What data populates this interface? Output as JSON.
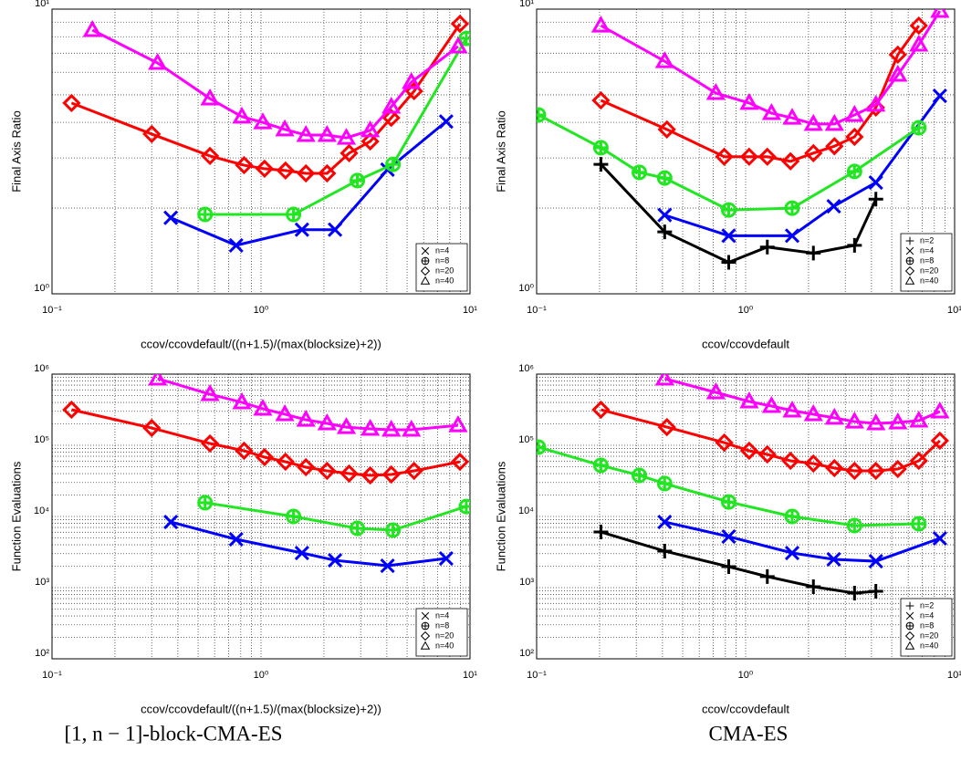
{
  "chart_data": [
    {
      "type": "line",
      "xlabel": "ccov/ccovdefault/((n+1.5)/(max(blocksize)+2))",
      "ylabel": "Final Axis Ratio",
      "log_x": true,
      "log_y": true,
      "grid": true,
      "minor_grid": true,
      "legend": "lower right",
      "xlim": [
        0.1,
        10
      ],
      "ylim": [
        1,
        10
      ],
      "xticks": [
        {
          "value": 0.1,
          "label": "10⁻¹"
        },
        {
          "value": 1,
          "label": "10⁰"
        },
        {
          "value": 10,
          "label": "10¹"
        }
      ],
      "yticks": [
        {
          "value": 1,
          "label": "10⁰"
        },
        {
          "value": 10,
          "label": "10¹"
        }
      ],
      "series": [
        {
          "name": "n=4",
          "color": "#0000ff",
          "marker": "x",
          "x": [
            0.37,
            0.76,
            1.57,
            2.26,
            4.03,
            7.69
          ],
          "values": [
            1.85,
            1.48,
            1.68,
            1.68,
            2.73,
            4.03
          ]
        },
        {
          "name": "n=8",
          "color": "#22e622",
          "marker": "circle-plus",
          "x": [
            0.54,
            1.43,
            2.89,
            4.28,
            9.6
          ],
          "values": [
            1.9,
            1.9,
            2.5,
            2.85,
            7.89
          ]
        },
        {
          "name": "n=20",
          "color": "#ff0000",
          "marker": "diamond",
          "x": [
            0.124,
            0.3,
            0.57,
            0.83,
            1.04,
            1.31,
            1.64,
            2.07,
            2.64,
            3.33,
            4.2,
            5.4,
            8.95
          ],
          "values": [
            4.68,
            3.64,
            3.05,
            2.83,
            2.75,
            2.71,
            2.65,
            2.65,
            3.12,
            3.43,
            4.15,
            5.15,
            8.88
          ]
        },
        {
          "name": "n=40",
          "color": "#ff00ff",
          "marker": "triangle",
          "x": [
            0.156,
            0.32,
            0.57,
            0.81,
            1.02,
            1.3,
            1.64,
            2.07,
            2.56,
            3.33,
            4.2,
            5.24,
            8.77
          ],
          "values": [
            8.44,
            6.47,
            4.85,
            4.19,
            4.0,
            3.78,
            3.61,
            3.61,
            3.53,
            3.75,
            4.54,
            5.54,
            7.39
          ]
        }
      ]
    },
    {
      "type": "line",
      "xlabel": "ccov/ccovdefault",
      "ylabel": "Final Axis Ratio",
      "log_x": true,
      "log_y": true,
      "grid": true,
      "minor_grid": true,
      "legend": "lower right",
      "xlim": [
        0.1,
        10
      ],
      "ylim": [
        1,
        10
      ],
      "xticks": [
        {
          "value": 0.1,
          "label": "10⁻¹"
        },
        {
          "value": 1,
          "label": "10⁰"
        },
        {
          "value": 10,
          "label": "10¹"
        }
      ],
      "yticks": [
        {
          "value": 1,
          "label": "10⁰"
        },
        {
          "value": 10,
          "label": "10¹"
        }
      ],
      "series": [
        {
          "name": "n=2",
          "color": "#000000",
          "marker": "plus",
          "x": [
            0.203,
            0.41,
            0.83,
            1.27,
            2.11,
            3.32,
            4.2
          ],
          "values": [
            2.85,
            1.65,
            1.29,
            1.46,
            1.39,
            1.48,
            2.15
          ]
        },
        {
          "name": "n=4",
          "color": "#0000ff",
          "marker": "x",
          "x": [
            0.41,
            0.83,
            1.67,
            2.64,
            4.2,
            8.5
          ],
          "values": [
            1.89,
            1.6,
            1.6,
            2.03,
            2.46,
            4.96
          ]
        },
        {
          "name": "n=8",
          "color": "#22e622",
          "marker": "circle-plus",
          "x": [
            0.102,
            0.203,
            0.31,
            0.41,
            0.83,
            1.67,
            3.32,
            6.74
          ],
          "values": [
            4.25,
            3.26,
            2.67,
            2.55,
            1.97,
            2.0,
            2.69,
            3.83
          ]
        },
        {
          "name": "n=20",
          "color": "#ff0000",
          "marker": "diamond",
          "x": [
            0.203,
            0.42,
            0.79,
            1.04,
            1.27,
            1.64,
            2.11,
            2.66,
            3.32,
            4.2,
            5.35,
            6.74
          ],
          "values": [
            4.78,
            3.78,
            3.03,
            3.03,
            3.03,
            2.92,
            3.12,
            3.3,
            3.56,
            4.51,
            6.92,
            8.75
          ]
        },
        {
          "name": "n=40",
          "color": "#ff00ff",
          "marker": "triangle",
          "x": [
            0.203,
            0.41,
            0.72,
            1.04,
            1.33,
            1.67,
            2.11,
            2.66,
            3.32,
            4.2,
            5.35,
            6.74,
            8.5
          ],
          "values": [
            8.75,
            6.56,
            5.07,
            4.68,
            4.31,
            4.15,
            3.95,
            3.95,
            4.25,
            4.61,
            5.88,
            7.5,
            9.85
          ]
        }
      ]
    },
    {
      "type": "line",
      "xlabel": "ccov/ccovdefault/((n+1.5)/(max(blocksize)+2))",
      "ylabel": "Function Evaluations",
      "log_x": true,
      "log_y": true,
      "grid": true,
      "minor_grid": true,
      "legend": "lower right",
      "xlim": [
        0.1,
        10
      ],
      "ylim": [
        100,
        1000000
      ],
      "xticks": [
        {
          "value": 0.1,
          "label": "10⁻¹"
        },
        {
          "value": 1,
          "label": "10⁰"
        },
        {
          "value": 10,
          "label": "10¹"
        }
      ],
      "yticks": [
        {
          "value": 100,
          "label": "10²"
        },
        {
          "value": 1000,
          "label": "10³"
        },
        {
          "value": 10000,
          "label": "10⁴"
        },
        {
          "value": 100000,
          "label": "10⁵"
        },
        {
          "value": 1000000,
          "label": "10⁶"
        }
      ],
      "series": [
        {
          "name": "n=4",
          "color": "#0000ff",
          "marker": "x",
          "x": [
            0.37,
            0.76,
            1.57,
            2.26,
            4.03,
            7.69
          ],
          "values": [
            8370,
            4780,
            3070,
            2420,
            2030,
            2570
          ]
        },
        {
          "name": "n=8",
          "color": "#22e622",
          "marker": "circle-plus",
          "x": [
            0.54,
            1.43,
            2.89,
            4.28,
            9.6
          ],
          "values": [
            15600,
            10000,
            6810,
            6420,
            13800
          ]
        },
        {
          "name": "n=20",
          "color": "#ff0000",
          "marker": "diamond",
          "x": [
            0.124,
            0.3,
            0.57,
            0.83,
            1.04,
            1.31,
            1.64,
            2.07,
            2.64,
            3.33,
            4.2,
            5.4,
            8.95
          ],
          "values": [
            316000,
            175000,
            106000,
            83800,
            68100,
            58700,
            49200,
            43700,
            40100,
            37800,
            38900,
            43700,
            58700
          ]
        },
        {
          "name": "n=40",
          "color": "#ff00ff",
          "marker": "triangle",
          "x": [
            0.32,
            0.57,
            0.81,
            1.02,
            1.3,
            1.64,
            2.07,
            2.56,
            3.33,
            4.2,
            5.24,
            8.77
          ],
          "values": [
            863000,
            522000,
            401000,
            326000,
            273000,
            228000,
            203000,
            180000,
            170000,
            165000,
            165000,
            191000
          ]
        }
      ]
    },
    {
      "type": "line",
      "xlabel": "ccov/ccovdefault",
      "ylabel": "Function Evaluations",
      "log_x": true,
      "log_y": true,
      "grid": true,
      "minor_grid": true,
      "legend": "lower right",
      "xlim": [
        0.1,
        10
      ],
      "ylim": [
        100,
        1000000
      ],
      "xticks": [
        {
          "value": 0.1,
          "label": "10⁻¹"
        },
        {
          "value": 1,
          "label": "10⁰"
        },
        {
          "value": 10,
          "label": "10¹"
        }
      ],
      "yticks": [
        {
          "value": 100,
          "label": "10²"
        },
        {
          "value": 1000,
          "label": "10³"
        },
        {
          "value": 10000,
          "label": "10⁴"
        },
        {
          "value": 100000,
          "label": "10⁵"
        },
        {
          "value": 1000000,
          "label": "10⁶"
        }
      ],
      "series": [
        {
          "name": "n=2",
          "color": "#000000",
          "marker": "plus",
          "x": [
            0.203,
            0.41,
            0.83,
            1.27,
            2.11,
            3.32,
            4.2
          ],
          "values": [
            6050,
            3260,
            1970,
            1430,
            1030,
            838,
            889
          ]
        },
        {
          "name": "n=4",
          "color": "#0000ff",
          "marker": "x",
          "x": [
            0.41,
            0.83,
            1.67,
            2.64,
            4.2,
            8.5
          ],
          "values": [
            8370,
            5220,
            3070,
            2500,
            2350,
            4920
          ]
        },
        {
          "name": "n=8",
          "color": "#22e622",
          "marker": "circle-plus",
          "x": [
            0.102,
            0.203,
            0.31,
            0.41,
            0.83,
            1.67,
            3.32,
            6.74
          ],
          "values": [
            94200,
            52200,
            37800,
            29000,
            16000,
            10000,
            7450,
            7890
          ]
        },
        {
          "name": "n=20",
          "color": "#ff0000",
          "marker": "diamond",
          "x": [
            0.203,
            0.42,
            0.79,
            1.04,
            1.27,
            1.64,
            2.11,
            2.66,
            3.32,
            4.2,
            5.35,
            6.74,
            8.5
          ],
          "values": [
            316000,
            180000,
            109000,
            83800,
            74500,
            60500,
            55400,
            47800,
            43700,
            43700,
            46400,
            60500,
            116000
          ]
        },
        {
          "name": "n=40",
          "color": "#ff00ff",
          "marker": "triangle",
          "x": [
            0.41,
            0.72,
            1.04,
            1.33,
            1.67,
            2.11,
            2.66,
            3.32,
            4.2,
            5.35,
            6.74,
            8.5
          ],
          "values": [
            863000,
            554000,
            412000,
            356000,
            307000,
            273000,
            243000,
            215000,
            203000,
            209000,
            222000,
            298000
          ]
        }
      ]
    }
  ],
  "captions": [
    "[1, n − 1]-block-CMA-ES",
    "CMA-ES"
  ]
}
